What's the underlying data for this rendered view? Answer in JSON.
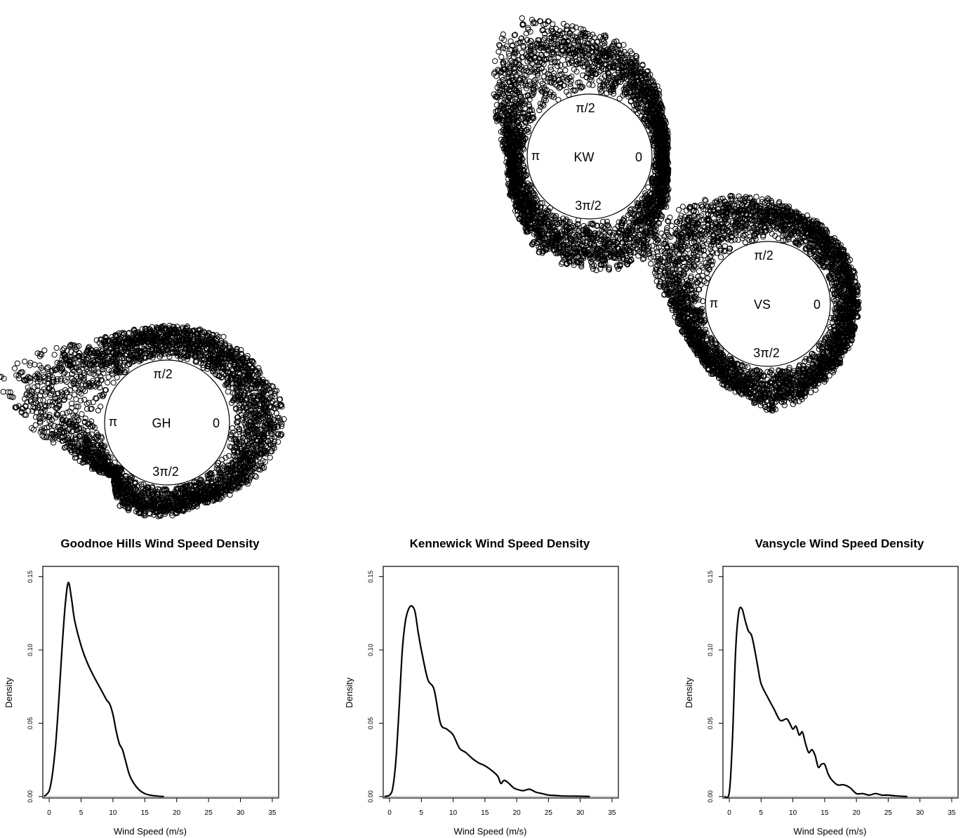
{
  "chart_data": [
    {
      "type": "scatter",
      "subtype": "circular-rose",
      "center_label": "GH",
      "angle_labels": {
        "east": "0",
        "north": "π/2",
        "west": "π",
        "south": "3π/2"
      },
      "profile_direction_deg": [
        0,
        15,
        30,
        45,
        60,
        75,
        90,
        105,
        120,
        135,
        150,
        165,
        180,
        195,
        210,
        225,
        240,
        255,
        270,
        285,
        300,
        315,
        330,
        345
      ],
      "profile_relative_extent": [
        0.45,
        0.42,
        0.34,
        0.31,
        0.3,
        0.27,
        0.25,
        0.25,
        0.3,
        0.38,
        0.72,
        1.0,
        0.72,
        0.32,
        0.18,
        0.05,
        0.24,
        0.24,
        0.22,
        0.18,
        0.2,
        0.27,
        0.33,
        0.38
      ]
    },
    {
      "type": "scatter",
      "subtype": "circular-rose",
      "center_label": "KW",
      "angle_labels": {
        "east": "0",
        "north": "π/2",
        "west": "π",
        "south": "3π/2"
      },
      "profile_direction_deg": [
        0,
        15,
        30,
        45,
        60,
        75,
        90,
        105,
        120,
        135,
        150,
        165,
        180,
        195,
        210,
        225,
        240,
        255,
        270,
        285,
        300,
        315,
        330,
        345
      ],
      "profile_relative_extent": [
        0.08,
        0.12,
        0.17,
        0.3,
        0.42,
        0.55,
        0.62,
        0.85,
        1.0,
        0.72,
        0.45,
        0.25,
        0.14,
        0.16,
        0.22,
        0.28,
        0.42,
        0.48,
        0.5,
        0.52,
        0.55,
        0.3,
        0.22,
        0.12
      ]
    },
    {
      "type": "scatter",
      "subtype": "circular-rose",
      "center_label": "VS",
      "angle_labels": {
        "east": "0",
        "north": "π/2",
        "west": "π",
        "south": "3π/2"
      },
      "profile_direction_deg": [
        0,
        15,
        30,
        45,
        60,
        75,
        90,
        105,
        120,
        135,
        150,
        165,
        180,
        195,
        210,
        225,
        240,
        255,
        270,
        285,
        300,
        315,
        330,
        345
      ],
      "profile_relative_extent": [
        0.28,
        0.3,
        0.32,
        0.35,
        0.38,
        0.42,
        0.52,
        0.62,
        0.78,
        0.95,
        1.0,
        0.75,
        0.4,
        0.28,
        0.22,
        0.25,
        0.3,
        0.34,
        0.55,
        0.48,
        0.4,
        0.34,
        0.3,
        0.28
      ]
    },
    {
      "type": "line",
      "title": "Goodnoe Hills Wind Speed Density",
      "xlabel": "Wind Speed (m/s)",
      "ylabel": "Density",
      "xlim": [
        -1,
        36
      ],
      "ylim": [
        -0.001,
        0.157
      ],
      "xticks": [
        0,
        5,
        10,
        15,
        20,
        25,
        30,
        35
      ],
      "yticks": [
        0.0,
        0.05,
        0.1,
        0.15
      ],
      "ytick_labels": [
        "0.00",
        "0.05",
        "0.10",
        "0.15"
      ],
      "x": [
        -0.8,
        0,
        0.5,
        1.0,
        1.5,
        2.0,
        2.5,
        3.0,
        3.5,
        4.0,
        5.0,
        6.0,
        7.0,
        8.0,
        9.0,
        9.5,
        10.0,
        10.5,
        11.0,
        11.5,
        12.0,
        12.5,
        13.0,
        14.0,
        15.0,
        16.0,
        17.0,
        18.0
      ],
      "y": [
        0.0,
        0.004,
        0.015,
        0.035,
        0.065,
        0.1,
        0.13,
        0.146,
        0.135,
        0.12,
        0.103,
        0.091,
        0.082,
        0.074,
        0.066,
        0.063,
        0.056,
        0.045,
        0.036,
        0.032,
        0.024,
        0.016,
        0.011,
        0.005,
        0.002,
        0.0008,
        0.0003,
        0.0
      ]
    },
    {
      "type": "line",
      "title": "Kennewick Wind Speed Density",
      "xlabel": "Wind Speed (m/s)",
      "ylabel": "Density",
      "xlim": [
        -1,
        36
      ],
      "ylim": [
        -0.001,
        0.157
      ],
      "xticks": [
        0,
        5,
        10,
        15,
        20,
        25,
        30,
        35
      ],
      "yticks": [
        0.0,
        0.05,
        0.1,
        0.15
      ],
      "ytick_labels": [
        "0.00",
        "0.05",
        "0.10",
        "0.15"
      ],
      "x": [
        -0.8,
        0,
        0.5,
        1.0,
        1.5,
        2.0,
        2.5,
        3.0,
        3.5,
        4.0,
        4.5,
        5.0,
        6.0,
        7.0,
        8.0,
        9.0,
        10.0,
        11.0,
        12.0,
        13.0,
        14.0,
        15.0,
        16.0,
        17.0,
        17.5,
        18.0,
        18.5,
        19.0,
        19.5,
        20.0,
        21.0,
        22.0,
        23.0,
        24.0,
        25.0,
        26.0,
        27.0,
        28.0,
        30.0,
        31.5
      ],
      "y": [
        0.0,
        0.001,
        0.006,
        0.025,
        0.06,
        0.1,
        0.12,
        0.128,
        0.13,
        0.126,
        0.112,
        0.1,
        0.08,
        0.073,
        0.05,
        0.046,
        0.042,
        0.033,
        0.03,
        0.026,
        0.023,
        0.021,
        0.018,
        0.014,
        0.009,
        0.011,
        0.01,
        0.008,
        0.006,
        0.005,
        0.004,
        0.005,
        0.003,
        0.002,
        0.001,
        0.0007,
        0.0004,
        0.0003,
        0.0002,
        0.0
      ]
    },
    {
      "type": "line",
      "title": "Vansycle Wind Speed Density",
      "xlabel": "Wind Speed (m/s)",
      "ylabel": "Density",
      "xlim": [
        -1,
        36
      ],
      "ylim": [
        -0.001,
        0.157
      ],
      "xticks": [
        0,
        5,
        10,
        15,
        20,
        25,
        30,
        35
      ],
      "yticks": [
        0.0,
        0.05,
        0.1,
        0.15
      ],
      "ytick_labels": [
        "0.00",
        "0.05",
        "0.10",
        "0.15"
      ],
      "x": [
        -0.8,
        0,
        0.5,
        1.0,
        1.5,
        2.0,
        2.5,
        3.0,
        3.5,
        4.0,
        4.5,
        5.0,
        6.0,
        7.0,
        8.0,
        9.0,
        9.5,
        10.0,
        10.5,
        11.0,
        11.5,
        12.0,
        12.5,
        13.0,
        13.5,
        14.0,
        14.5,
        15.0,
        15.5,
        16.0,
        17.0,
        18.0,
        19.0,
        20.0,
        21.0,
        22.0,
        23.0,
        24.0,
        25.0,
        26.0,
        27.0,
        28.0
      ],
      "y": [
        0.0,
        0.003,
        0.04,
        0.1,
        0.126,
        0.128,
        0.12,
        0.113,
        0.11,
        0.1,
        0.088,
        0.077,
        0.068,
        0.06,
        0.052,
        0.053,
        0.05,
        0.046,
        0.048,
        0.042,
        0.044,
        0.036,
        0.03,
        0.032,
        0.028,
        0.02,
        0.022,
        0.022,
        0.016,
        0.012,
        0.008,
        0.008,
        0.006,
        0.002,
        0.002,
        0.001,
        0.002,
        0.001,
        0.001,
        0.0005,
        0.0002,
        0.0
      ]
    }
  ]
}
